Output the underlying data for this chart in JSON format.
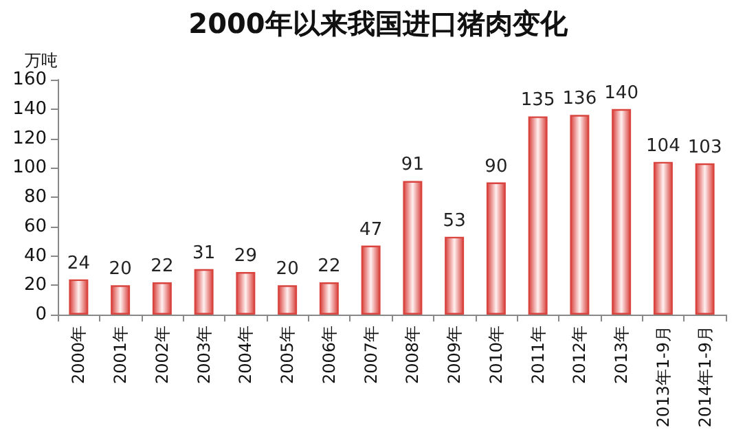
{
  "chart_data": {
    "type": "bar",
    "title": "2000年以来我国进口猪肉变化",
    "ylabel": "万吨",
    "categories": [
      "2000年",
      "2001年",
      "2002年",
      "2003年",
      "2004年",
      "2005年",
      "2006年",
      "2007年",
      "2008年",
      "2009年",
      "2010年",
      "2011年",
      "2012年",
      "2013年",
      "2013年1-9月",
      "2014年1-9月"
    ],
    "values": [
      24,
      20,
      22,
      31,
      29,
      20,
      22,
      47,
      91,
      53,
      90,
      135,
      136,
      140,
      104,
      103
    ],
    "color": "#d9443f",
    "ylim": [
      0,
      160
    ],
    "yticks": [
      0,
      20,
      40,
      60,
      80,
      100,
      120,
      140,
      160
    ],
    "grid": false,
    "data_labels": true
  }
}
